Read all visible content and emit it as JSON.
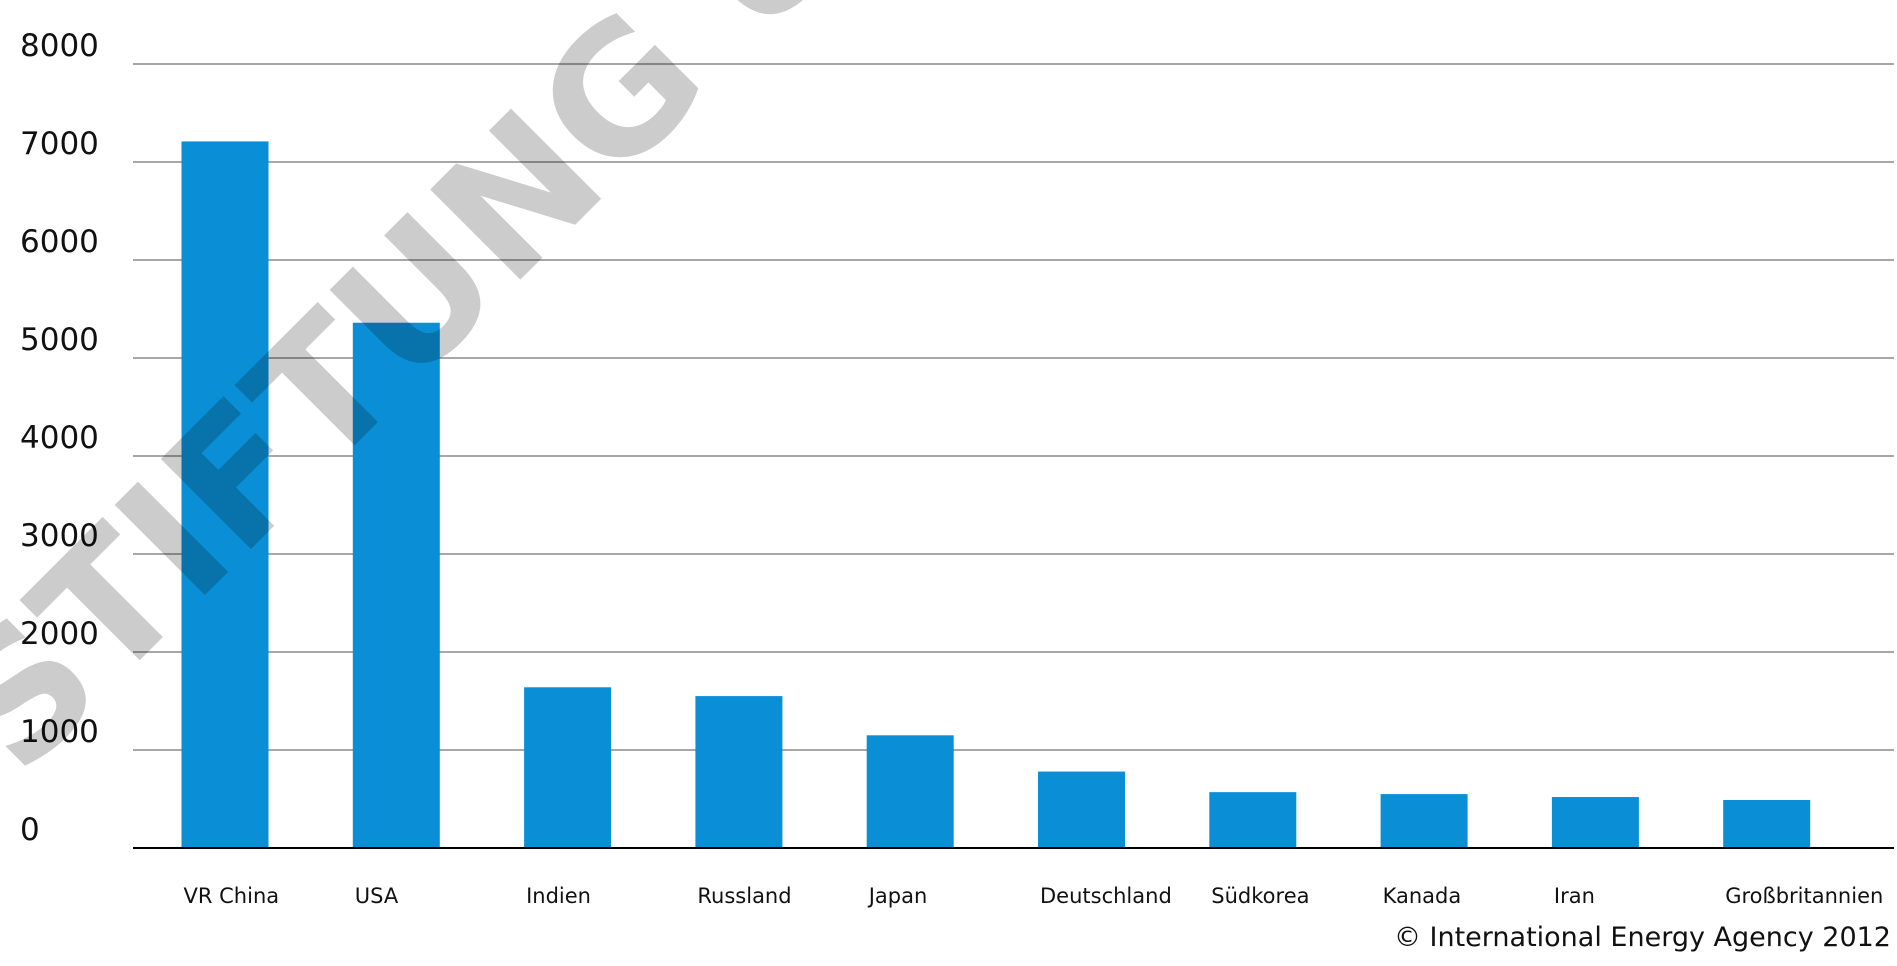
{
  "chart_data": {
    "type": "bar",
    "categories": [
      "VR China",
      "USA",
      "Indien",
      "Russland",
      "Japan",
      "Deutschland",
      "Südkorea",
      "Kanada",
      "Iran",
      "Großbritannien"
    ],
    "values": [
      7210,
      5360,
      1640,
      1550,
      1150,
      780,
      570,
      550,
      520,
      490
    ],
    "color": "#0a8fd6",
    "ylim": [
      0,
      8000
    ],
    "yticks": [
      0,
      1000,
      2000,
      3000,
      4000,
      5000,
      6000,
      7000,
      8000
    ],
    "grid": true,
    "source": "© International Energy Agency 2012",
    "watermark": "STIFTUNG UN"
  }
}
